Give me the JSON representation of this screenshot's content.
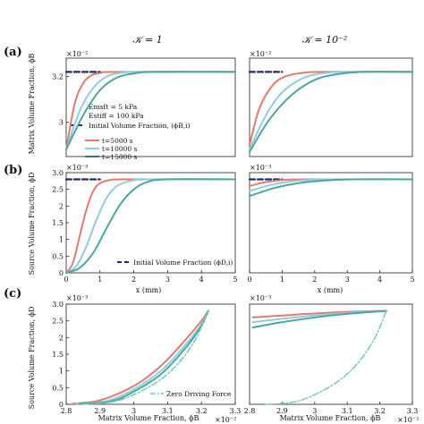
{
  "column_titles": [
    "𝒦 = 1",
    "𝒦 = 10⁻²"
  ],
  "colors": {
    "initial": "#1f2a6b",
    "t5000": "#e07b6e",
    "t10000": "#93cbe4",
    "t15000": "#4aa89a",
    "zero": "#72cbb5"
  },
  "panels": {
    "a": {
      "label": "(a)",
      "ylabel": "Matrix Volume Fraction, ϕB",
      "exponent": "×10⁻²",
      "yticks": [
        "3",
        "3.2"
      ],
      "legend_text": [
        "Emsft = 5 kPa",
        "Estiff = 100 kPa",
        "Initial Volume Fraction, (ϕB,i)",
        "t=5000 s",
        "t=10000 s",
        "t=15000 s"
      ]
    },
    "b": {
      "label": "(b)",
      "ylabel": "Source Volume Fraction, ϕD",
      "exponent": "×10⁻³",
      "yticks": [
        "0",
        "0.5",
        "1",
        "1.5",
        "2",
        "2.5",
        "3.0"
      ],
      "xticks": [
        "0",
        "1",
        "2",
        "3",
        "4",
        "5"
      ],
      "xlabel": "x (mm)",
      "legend_text": [
        "Initial Volume Fraction (ϕD,i)"
      ]
    },
    "c": {
      "label": "(c)",
      "ylabel": "Source Volume Fraction, ϕD",
      "exponent": "×10⁻³",
      "yticks": [
        "0",
        "0.5",
        "1",
        "1.5",
        "2",
        "2.5",
        "3.0"
      ],
      "xticks": [
        "2.8",
        "2.9",
        "3",
        "3.1",
        "3.2",
        "3.3"
      ],
      "xlabel": "Matrix Volume Fraction, ϕB",
      "x_exponent": "×10⁻²",
      "legend_text": [
        "Zero Driving Force"
      ]
    }
  },
  "chart_data": [
    {
      "panel": "a-left",
      "type": "line",
      "xlim": [
        0,
        5
      ],
      "ylim": [
        2.85,
        3.28
      ],
      "series": [
        {
          "key": "initial",
          "x": [
            0,
            1
          ],
          "y": [
            3.22,
            3.22
          ]
        },
        {
          "key": "t5000",
          "x": [
            0,
            0.25,
            0.5,
            0.75,
            1.0,
            1.5,
            5
          ],
          "y": [
            2.88,
            3.08,
            3.17,
            3.205,
            3.215,
            3.22,
            3.22
          ]
        },
        {
          "key": "t10000",
          "x": [
            0,
            0.4,
            0.8,
            1.2,
            1.6,
            2.2,
            5
          ],
          "y": [
            2.88,
            3.05,
            3.15,
            3.2,
            3.215,
            3.22,
            3.22
          ]
        },
        {
          "key": "t15000",
          "x": [
            0,
            0.5,
            1.0,
            1.5,
            2.0,
            2.6,
            5
          ],
          "y": [
            2.88,
            3.03,
            3.14,
            3.195,
            3.213,
            3.22,
            3.22
          ]
        }
      ]
    },
    {
      "panel": "a-right",
      "type": "line",
      "xlim": [
        0,
        5
      ],
      "ylim": [
        2.85,
        3.28
      ],
      "series": [
        {
          "key": "initial",
          "x": [
            0,
            1
          ],
          "y": [
            3.22,
            3.22
          ]
        },
        {
          "key": "t5000",
          "x": [
            0,
            0.3,
            0.7,
            1.1,
            1.6,
            2.2,
            5
          ],
          "y": [
            2.9,
            3.06,
            3.16,
            3.2,
            3.215,
            3.22,
            3.22
          ]
        },
        {
          "key": "t10000",
          "x": [
            0,
            0.5,
            1.0,
            1.6,
            2.2,
            3.0,
            5
          ],
          "y": [
            2.88,
            3.03,
            3.13,
            3.19,
            3.213,
            3.22,
            3.22
          ]
        },
        {
          "key": "t15000",
          "x": [
            0,
            0.6,
            1.3,
            2.0,
            2.7,
            3.5,
            5
          ],
          "y": [
            2.87,
            3.01,
            3.12,
            3.185,
            3.21,
            3.22,
            3.22
          ]
        }
      ]
    },
    {
      "panel": "b-left",
      "type": "line",
      "xlim": [
        0,
        5
      ],
      "ylim": [
        0,
        3.0
      ],
      "series": [
        {
          "key": "initial",
          "x": [
            0,
            1
          ],
          "y": [
            2.8,
            2.8
          ]
        },
        {
          "key": "t5000",
          "x": [
            0,
            0.2,
            0.4,
            0.6,
            0.8,
            1.0,
            1.3,
            1.8,
            5
          ],
          "y": [
            0,
            0.3,
            1.1,
            1.9,
            2.45,
            2.68,
            2.78,
            2.8,
            2.8
          ]
        },
        {
          "key": "t10000",
          "x": [
            0,
            0.3,
            0.6,
            0.9,
            1.2,
            1.5,
            1.9,
            2.5,
            5
          ],
          "y": [
            0,
            0.2,
            0.8,
            1.6,
            2.25,
            2.6,
            2.75,
            2.8,
            2.8
          ]
        },
        {
          "key": "t15000",
          "x": [
            0,
            0.4,
            0.8,
            1.2,
            1.6,
            2.0,
            2.4,
            3.0,
            5
          ],
          "y": [
            0,
            0.15,
            0.6,
            1.35,
            2.05,
            2.5,
            2.72,
            2.8,
            2.8
          ]
        }
      ]
    },
    {
      "panel": "b-right",
      "type": "line",
      "xlim": [
        0,
        5
      ],
      "ylim": [
        0,
        3.0
      ],
      "series": [
        {
          "key": "initial",
          "x": [
            0,
            1
          ],
          "y": [
            2.8,
            2.8
          ]
        },
        {
          "key": "t5000",
          "x": [
            0,
            0.4,
            0.8,
            1.2,
            1.8,
            5
          ],
          "y": [
            2.6,
            2.7,
            2.76,
            2.79,
            2.8,
            2.8
          ]
        },
        {
          "key": "t10000",
          "x": [
            0,
            0.6,
            1.2,
            1.8,
            2.5,
            5
          ],
          "y": [
            2.45,
            2.62,
            2.73,
            2.78,
            2.8,
            2.8
          ]
        },
        {
          "key": "t15000",
          "x": [
            0,
            0.8,
            1.6,
            2.4,
            3.2,
            5
          ],
          "y": [
            2.3,
            2.55,
            2.7,
            2.77,
            2.8,
            2.8
          ]
        }
      ]
    },
    {
      "panel": "c-left",
      "type": "line",
      "xlim": [
        2.8,
        3.3
      ],
      "ylim": [
        0,
        3.0
      ],
      "series": [
        {
          "key": "t5000",
          "x": [
            2.82,
            2.9,
            3.0,
            3.08,
            3.15,
            3.2,
            3.22
          ],
          "y": [
            0.02,
            0.12,
            0.55,
            1.15,
            1.9,
            2.5,
            2.8
          ]
        },
        {
          "key": "t10000",
          "x": [
            2.83,
            2.92,
            3.0,
            3.08,
            3.15,
            3.2,
            3.22
          ],
          "y": [
            0.02,
            0.1,
            0.45,
            1.0,
            1.75,
            2.4,
            2.8
          ]
        },
        {
          "key": "t15000",
          "x": [
            2.84,
            2.93,
            3.0,
            3.08,
            3.15,
            3.2,
            3.22
          ],
          "y": [
            0.02,
            0.08,
            0.38,
            0.9,
            1.65,
            2.35,
            2.8
          ]
        },
        {
          "key": "zero",
          "dashed": true,
          "x": [
            2.85,
            2.95,
            3.05,
            3.12,
            3.18,
            3.22
          ],
          "y": [
            0.0,
            0.1,
            0.55,
            1.1,
            1.9,
            2.8
          ]
        }
      ]
    },
    {
      "panel": "c-right",
      "type": "line",
      "xlim": [
        2.8,
        3.3
      ],
      "ylim": [
        0,
        3.0
      ],
      "series": [
        {
          "key": "t5000",
          "x": [
            2.81,
            2.9,
            3.0,
            3.1,
            3.22
          ],
          "y": [
            2.6,
            2.66,
            2.72,
            2.77,
            2.8
          ]
        },
        {
          "key": "t10000",
          "x": [
            2.81,
            2.9,
            3.0,
            3.1,
            3.22
          ],
          "y": [
            2.46,
            2.56,
            2.66,
            2.74,
            2.8
          ]
        },
        {
          "key": "t15000",
          "x": [
            2.81,
            2.9,
            3.0,
            3.1,
            3.22
          ],
          "y": [
            2.3,
            2.46,
            2.6,
            2.71,
            2.8
          ]
        },
        {
          "key": "zero",
          "dashed": true,
          "x": [
            2.85,
            2.95,
            3.05,
            3.12,
            3.18,
            3.22
          ],
          "y": [
            0.0,
            0.1,
            0.55,
            1.1,
            1.9,
            2.8
          ]
        }
      ]
    }
  ]
}
